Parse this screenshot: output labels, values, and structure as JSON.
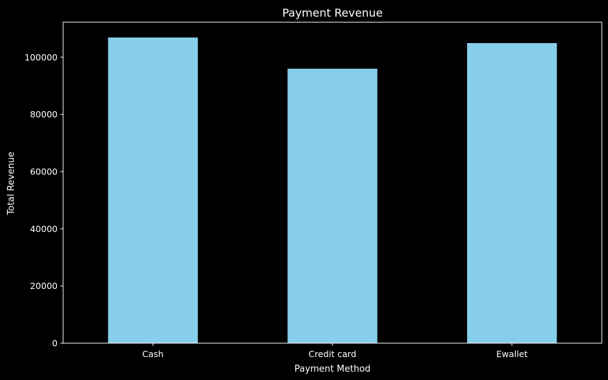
{
  "chart_data": {
    "type": "bar",
    "title": "Payment Revenue",
    "xlabel": "Payment Method",
    "ylabel": "Total Revenue",
    "categories": [
      "Cash",
      "Credit card",
      "Ewallet"
    ],
    "values": [
      106863,
      95968,
      104912
    ],
    "ylim": [
      0,
      112206
    ],
    "yticks": [
      0,
      20000,
      40000,
      60000,
      80000,
      100000
    ],
    "ytick_labels": [
      "0",
      "20000",
      "40000",
      "60000",
      "80000",
      "100000"
    ],
    "grid": false,
    "legend": "none"
  },
  "colors": {
    "background": "#000000",
    "bar": "#87ceeb",
    "axis": "#ffffff",
    "text": "#ffffff"
  }
}
